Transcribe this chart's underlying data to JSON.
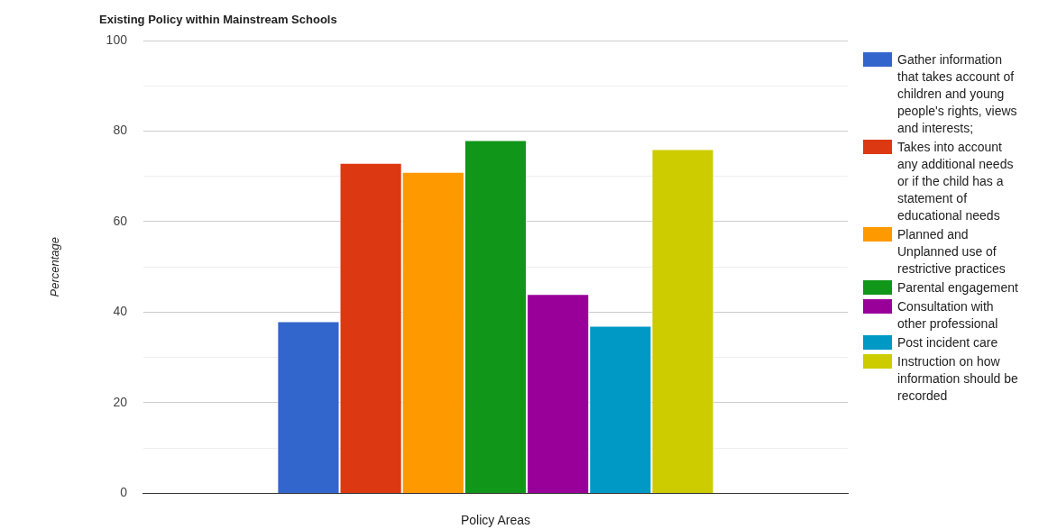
{
  "chart_data": {
    "type": "bar",
    "title": "Existing Policy within Mainstream Schools",
    "xlabel": "Policy Areas",
    "ylabel": "Percentage",
    "categories": [
      null
    ],
    "series": [
      {
        "name": "Gather information that takes account of children and young people's rights, views and interests;",
        "color": "#3366cc",
        "values": [
          38
        ]
      },
      {
        "name": "Takes into account any additional needs or if the child has a statement of educational needs",
        "color": "#dc3912",
        "values": [
          73
        ]
      },
      {
        "name": "Planned and Unplanned use of restrictive practices",
        "color": "#ff9900",
        "values": [
          71
        ]
      },
      {
        "name": "Parental engagement",
        "color": "#109618",
        "values": [
          78
        ]
      },
      {
        "name": "Consultation with other professional",
        "color": "#990099",
        "values": [
          44
        ]
      },
      {
        "name": "Post incident care",
        "color": "#0099c6",
        "values": [
          37
        ]
      },
      {
        "name": "Instruction on how information should be recorded",
        "color": "#cccc00",
        "values": [
          76
        ]
      }
    ],
    "ylim": [
      0,
      100
    ],
    "yticks": [
      0,
      {
        "value": 10,
        "label": null
      },
      20,
      {
        "value": 30,
        "label": null
      },
      40,
      {
        "value": 50,
        "label": null
      },
      60,
      {
        "value": 70,
        "label": null
      },
      80,
      {
        "value": 90,
        "label": null
      },
      100
    ],
    "grid": "y",
    "legend": "right"
  }
}
